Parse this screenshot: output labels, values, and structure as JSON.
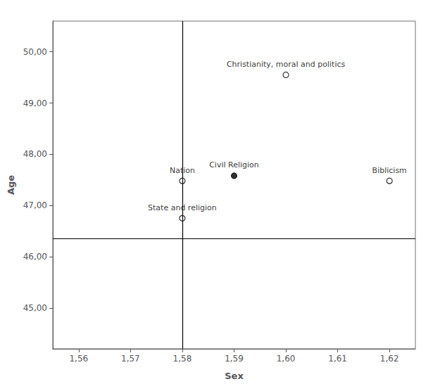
{
  "chart_data": {
    "type": "scatter",
    "xlabel": "Sex",
    "ylabel": "Age",
    "xlim": [
      1.555,
      1.625
    ],
    "ylim": [
      44.2,
      50.6
    ],
    "xticks": [
      {
        "value": 1.56,
        "label": "1,56"
      },
      {
        "value": 1.57,
        "label": "1,57"
      },
      {
        "value": 1.58,
        "label": "1,58"
      },
      {
        "value": 1.59,
        "label": "1,59"
      },
      {
        "value": 1.6,
        "label": "1,60"
      },
      {
        "value": 1.61,
        "label": "1,61"
      },
      {
        "value": 1.62,
        "label": "1,62"
      }
    ],
    "yticks": [
      {
        "value": 45.0,
        "label": "45,00"
      },
      {
        "value": 46.0,
        "label": "46,00"
      },
      {
        "value": 47.0,
        "label": "47,00"
      },
      {
        "value": 48.0,
        "label": "48,00"
      },
      {
        "value": 49.0,
        "label": "49,00"
      },
      {
        "value": 50.0,
        "label": "50,00"
      }
    ],
    "ref_x": 1.5825,
    "ref_y": 46.35,
    "color": "#000000",
    "grid": false,
    "points": [
      {
        "label": "Christianity, moral and politics",
        "x": 1.6,
        "y": 49.55,
        "marker": "open"
      },
      {
        "label": "Civil Religion",
        "x": 1.59,
        "y": 47.58,
        "marker": "filled"
      },
      {
        "label": "Nation",
        "x": 1.58,
        "y": 47.48,
        "marker": "open"
      },
      {
        "label": "State and religion",
        "x": 1.58,
        "y": 46.75,
        "marker": "open"
      },
      {
        "label": "Biblicism",
        "x": 1.62,
        "y": 47.48,
        "marker": "open"
      }
    ]
  }
}
